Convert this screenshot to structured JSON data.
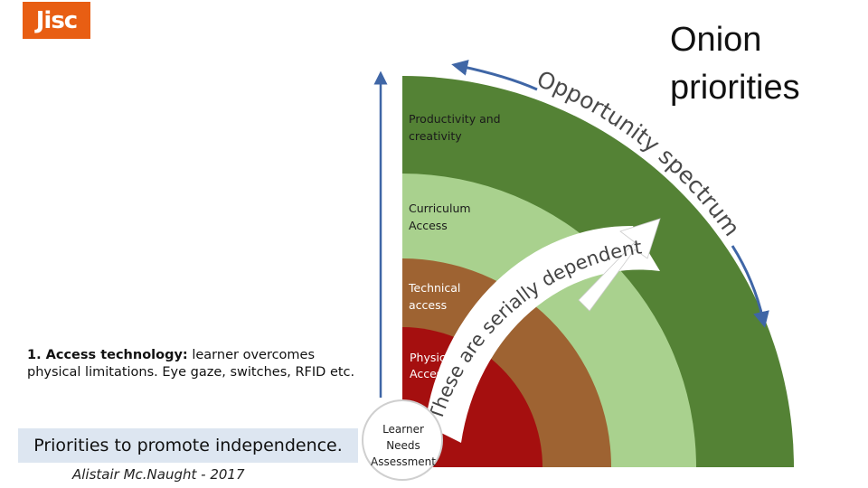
{
  "logo": {
    "text": "Jisc",
    "color": "#e85e13"
  },
  "title": {
    "line1": "Onion",
    "line2": "priorities"
  },
  "rings": [
    {
      "line1": "Productivity  and",
      "line2": "creativity",
      "color": "#548235",
      "text_color": "#1a1a1a"
    },
    {
      "line1": "Curriculum",
      "line2": "Access",
      "color": "#a9d18e",
      "text_color": "#1a1a1a"
    },
    {
      "line1": "Technical",
      "line2": "access",
      "color": "#9e6332",
      "text_color": "#ffffff"
    },
    {
      "line1": "Physical",
      "line2": "Access",
      "color": "#a50f0f",
      "text_color": "#ffffff"
    }
  ],
  "core": {
    "line1": "Learner",
    "line2": "Needs",
    "line3": "Assessment"
  },
  "arc_text": {
    "outer": "Opportunity spectrum",
    "inner": "These are serially dependent"
  },
  "note": {
    "bold": "1. Access technology:",
    "text": " learner overcomes physical limitations. Eye gaze, switches, RFID etc."
  },
  "priorities": {
    "strong": "Priorities",
    "rest": "to promote independence."
  },
  "author": "Alistair Mc.Naught - 2017",
  "colors": {
    "arrow_blue": "#3f66a6",
    "white_arrow": "#ffffff"
  }
}
